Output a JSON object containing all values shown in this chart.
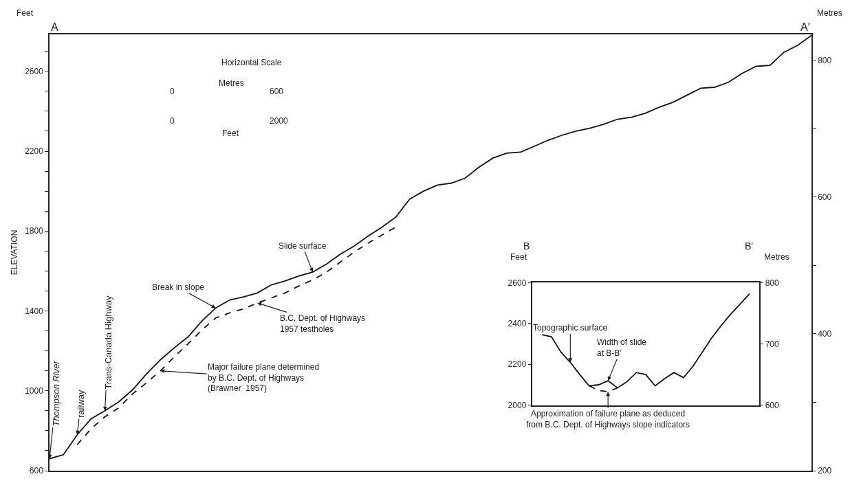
{
  "chart_data": [
    {
      "type": "line",
      "categories": [
        null,
        null,
        null,
        null,
        null,
        null,
        null,
        null,
        null,
        null,
        null,
        null,
        null,
        null,
        null,
        null,
        null,
        null,
        null,
        null,
        null,
        null,
        null,
        null,
        null,
        null,
        null,
        null,
        null,
        null,
        null,
        null,
        null,
        null,
        null,
        null,
        null,
        null,
        null,
        null,
        null,
        null,
        null,
        null,
        null,
        null,
        null,
        null,
        null,
        null,
        null,
        null,
        null,
        null,
        null,
        null
      ],
      "ylabel": "ELEVATION",
      "y2label": "Metres",
      "annotations": [
        "A",
        "A′",
        "Feet",
        "Thompson River",
        "railway",
        "Trans-Canada Highway",
        "Break in slope",
        "Slide surface",
        "B.C. Dept. of Highways\n1957 testholes",
        "Major failure plane determined\nby B.C. Dept. of Highways\n(Brawner  1957)",
        "Horizontal Scale",
        "Metres",
        "0",
        "600",
        "0",
        "2000",
        "Feet"
      ],
      "series": [
        {
          "color": "#111111",
          "line_style": "solid",
          "values": [
            660,
            680,
            780,
            860,
            900,
            945,
            1005,
            1085,
            1155,
            1215,
            1270,
            1350,
            1415,
            1455,
            1470,
            1490,
            1530,
            1550,
            1575,
            1595,
            1635,
            1685,
            1725,
            1775,
            1820,
            1870,
            1960,
            2000,
            2030,
            2040,
            2065,
            2120,
            2165,
            2190,
            2195,
            2225,
            2255,
            2280,
            2300,
            2315,
            2335,
            2360,
            2370,
            2390,
            2420,
            2445,
            2480,
            2515,
            2520,
            2545,
            2590,
            2625,
            2630,
            2695,
            2730,
            2780
          ]
        },
        {
          "color": "#111111",
          "line_style": "dashed",
          "values": [
            null,
            null,
            730,
            810,
            870,
            915,
            985,
            1040,
            1100,
            1170,
            1235,
            1305,
            1365,
            1390,
            1410,
            1440,
            1465,
            1490,
            1525,
            1555,
            1595,
            1645,
            1695,
            1740,
            1780,
            1820,
            null,
            null,
            null,
            null,
            null,
            null,
            null,
            null,
            null,
            null,
            null,
            null,
            null,
            null,
            null,
            null,
            null,
            null,
            null,
            null,
            null,
            null,
            null,
            null,
            null,
            null,
            null,
            null,
            null,
            null
          ]
        }
      ],
      "ylim": [
        600,
        2785
      ],
      "yticks": [
        600,
        {
          "value": 700,
          "label": null
        },
        {
          "value": 800,
          "label": null
        },
        {
          "value": 900,
          "label": null
        },
        1000,
        {
          "value": 1100,
          "label": null
        },
        {
          "value": 1200,
          "label": null
        },
        {
          "value": 1300,
          "label": null
        },
        1400,
        {
          "value": 1500,
          "label": null
        },
        {
          "value": 1600,
          "label": null
        },
        {
          "value": 1700,
          "label": null
        },
        1800,
        {
          "value": 1900,
          "label": null
        },
        {
          "value": 2000,
          "label": null
        },
        {
          "value": 2100,
          "label": null
        },
        2200,
        {
          "value": 2300,
          "label": null
        },
        {
          "value": 2400,
          "label": null
        },
        {
          "value": 2500,
          "label": null
        },
        2600,
        {
          "value": 2700,
          "label": null
        }
      ],
      "y2lim": [
        200,
        838
      ],
      "y2ticks": [
        200,
        {
          "value": 300,
          "label": null
        },
        400,
        {
          "value": 500,
          "label": null
        },
        600,
        {
          "value": 700,
          "label": null
        },
        800
      ],
      "tick_labels": "y"
    },
    {
      "type": "line",
      "categories": [
        null,
        null,
        null,
        null,
        null,
        null,
        null,
        null,
        null,
        null,
        null,
        null,
        null,
        null,
        null,
        null,
        null,
        null,
        null,
        null,
        null,
        null,
        null
      ],
      "ylabel": "Feet",
      "y2label": "Metres",
      "annotations": [
        "B",
        "B′",
        "Topographic surface",
        "Width of slide\nat B-B′",
        "Approximation of failure plane as deduced\nfrom B.C. Dept. of Highways slope indicators"
      ],
      "series": [
        {
          "color": "#111111",
          "line_style": "solid",
          "values": [
            2345,
            2335,
            2260,
            2210,
            2150,
            2095,
            2100,
            2120,
            2085,
            2115,
            2160,
            2150,
            2095,
            2130,
            2160,
            2135,
            2190,
            2260,
            2330,
            2390,
            2445,
            2495,
            2545
          ]
        },
        {
          "color": "#111111",
          "line_style": "dashed",
          "values": [
            null,
            null,
            null,
            null,
            null,
            2095,
            2072,
            2066,
            2085,
            null,
            null,
            null,
            null,
            null,
            null,
            null,
            null,
            null,
            null,
            null,
            null,
            null,
            null
          ]
        }
      ],
      "ylim": [
        2000,
        2600
      ],
      "yticks": [
        2000,
        2200,
        2400,
        2600
      ],
      "y2lim": [
        600,
        800
      ],
      "y2ticks": [
        600,
        700,
        800
      ],
      "tick_labels": "y"
    }
  ]
}
